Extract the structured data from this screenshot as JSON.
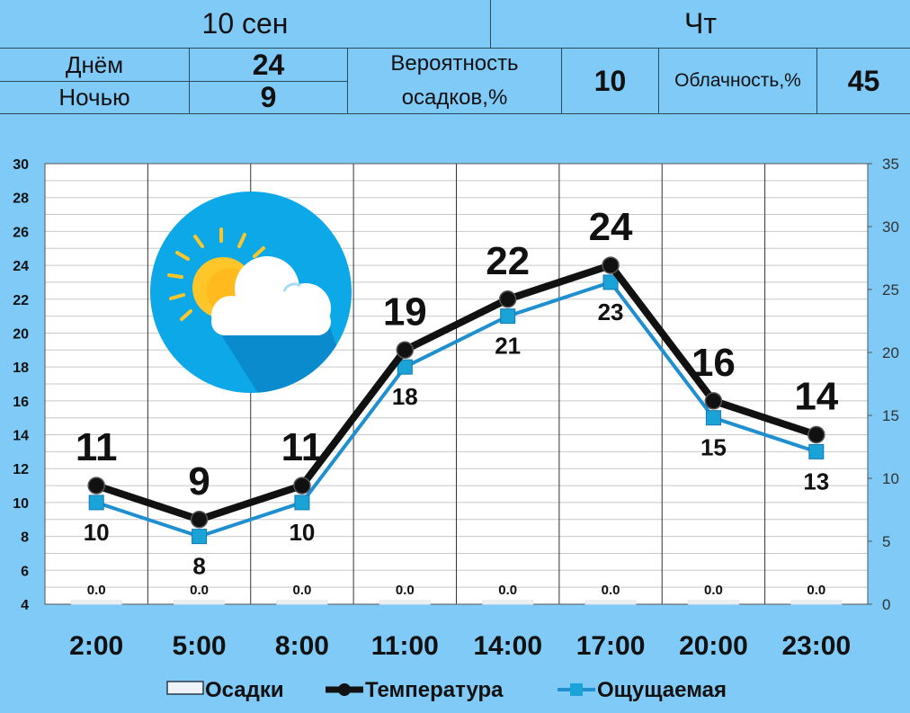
{
  "header": {
    "date": "10 сен",
    "weekday": "Чт",
    "day_label": "Днём",
    "day_value": "24",
    "night_label": "Ночью",
    "night_value": "9",
    "precip_label_line1": "Вероятность",
    "precip_label_line2": "осадков,%",
    "precip_value": "10",
    "cloud_label": "Облачность,%",
    "cloud_value": "45"
  },
  "weather_icon": "partly-cloudy-icon",
  "colors": {
    "background": "#7fcaf7",
    "plot": "#ffffff",
    "temperature": "#111111",
    "feels_like": "#1f8fd0",
    "feels_marker": "#1aa3d6",
    "icon_circle": "#0da8e8",
    "sun": "#ffc629"
  },
  "chart_data": {
    "type": "line",
    "categories": [
      "2:00",
      "5:00",
      "8:00",
      "11:00",
      "14:00",
      "17:00",
      "20:00",
      "23:00"
    ],
    "y_left": {
      "min": 4,
      "max": 30,
      "step": 2,
      "ticks": [
        "4",
        "6",
        "8",
        "10",
        "12",
        "14",
        "16",
        "18",
        "20",
        "22",
        "24",
        "26",
        "28",
        "30"
      ]
    },
    "y_right": {
      "min": 0,
      "max": 35,
      "step": 5,
      "ticks": [
        "0",
        "5",
        "10",
        "15",
        "20",
        "25",
        "30",
        "35"
      ]
    },
    "grid": true,
    "legend_position": "bottom",
    "series": [
      {
        "name": "Осадки",
        "type": "bar",
        "axis": "right",
        "values": [
          0.0,
          0.0,
          0.0,
          0.0,
          0.0,
          0.0,
          0.0,
          0.0
        ],
        "labels": [
          "0.0",
          "0.0",
          "0.0",
          "0.0",
          "0.0",
          "0.0",
          "0.0",
          "0.0"
        ]
      },
      {
        "name": "Температура",
        "type": "line",
        "axis": "left",
        "values": [
          11,
          9,
          11,
          19,
          22,
          24,
          16,
          14
        ]
      },
      {
        "name": "Ощущаемая",
        "type": "line",
        "axis": "left",
        "values": [
          10,
          8,
          10,
          18,
          21,
          23,
          15,
          13
        ]
      }
    ]
  }
}
